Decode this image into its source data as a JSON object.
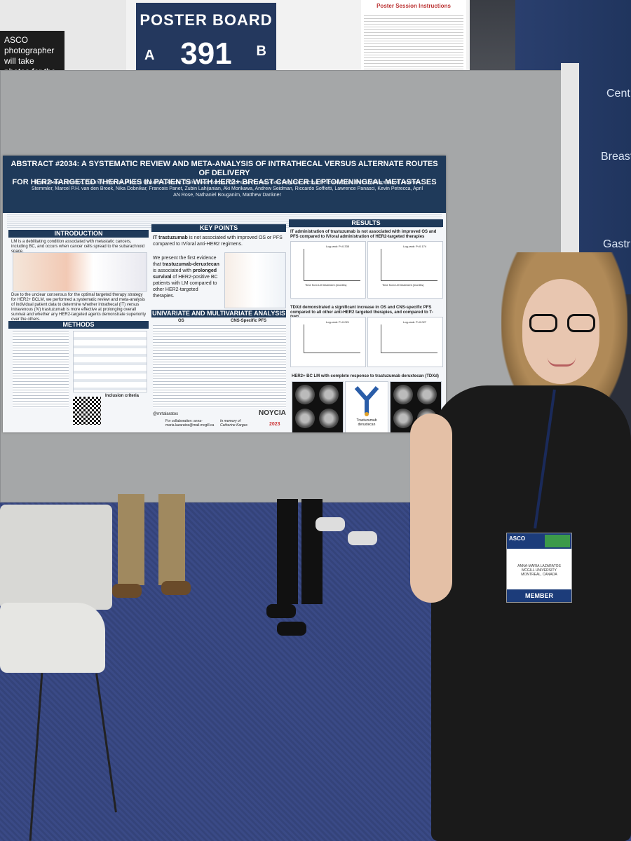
{
  "scene": {
    "photographer_sign": "ASCO photographer will take photos for the Digital Program.",
    "poster_board": {
      "title": "POSTER BOARD",
      "number": "391",
      "left_letter": "A",
      "right_letter": "B"
    },
    "instructions_title": "Poster Session Instructions",
    "booth_words": [
      "Cent",
      "Breast",
      "Gastr"
    ]
  },
  "poster": {
    "title_line1": "ABSTRACT #2034: A SYSTEMATIC REVIEW AND META-ANALYSIS OF INTRATHECAL VERSUS ALTERNATE ROUTES OF DELIVERY",
    "title_line2": "FOR HER2-TARGETED THERAPIES IN PATIENTS WITH HER2+ BREAST CANCER LEPTOMENINGEAL METASTASES",
    "authors": "Anna-Maria Lazaratos, Sarah M. Maritan, Andrea Quaiattini, Amelie Darlix, Ivica Ratosa, Emanuela Ferraro, Gaia Griguolo, Alessia Pellerino, Silvia Hofer, William Jacot, Joachim Stemmler, Marcel P.H. van den Broek, Nika Dobnikar, Francois Panet, Zubin Lahijanian, Aki Morikawa, Andrew Seidman, Riccardo Soffietti, Lawrence Panasci, Kevin Petrecca, April AN Rose, Nathaniel Bouganim, Matthew Dankner",
    "intro": {
      "header": "INTRODUCTION",
      "text1": "LM is a debilitating condition associated with metastatic cancers, including BC, and occurs when cancer cells spread to the subarachnoid space.",
      "text2": "Due to the unclear consensus for the optimal targeted therapy strategy for HER2+ BCLM, we performed a systematic review and meta-analysis of individual patient data to determine whether intrathecal (IT) versus intravenous (IV) trastuzumab is more effective at prolonging overall survival and whether any HER2-targeted agents demonstrate superiority over the others."
    },
    "methods": {
      "header": "METHODS",
      "inclusion": "Inclusion criteria"
    },
    "key_points": {
      "header": "KEY POINTS",
      "point1_a": "IT trastuzumab",
      "point1_b": " is not associated with improved OS or PFS compared to IV/oral anti-HER2 regimens.",
      "point2_a": "We present the first evidence that ",
      "point2_b": "trastuzumab-deruxtecan",
      "point2_c": " is associated with ",
      "point2_d": "prolonged survival",
      "point2_e": " of HER2-positive BC patients with LM compared to other HER2-targeted therapies."
    },
    "analysis": {
      "header": "UNIVARIATE AND MULTIVARIATE ANALYSIS",
      "col1": "OS",
      "col2": "CNS-Specific PFS"
    },
    "results": {
      "header": "RESULTS",
      "finding1": "IT administration of trastuzumab is not associated with improved OS and PFS compared to IV/oral administration of HER2-targeted therapies",
      "finding2": "TDXd demonstrated a significant increase in OS and CNS-specific PFS compared to all other anti-HER2 targeted therapies, and compared to T-DM1",
      "finding3": "HER2+ BC LM with complete response to trastuzumab deruxtecan (TDXd)",
      "drug_label": "Trastuzumab deruxtecan",
      "logrank1": "Log-rank: P=0.335",
      "logrank2": "Log-rank: P=0.174",
      "logrank3": "Log-rank: P=0.021",
      "logrank4": "Log-rank: P=0.027",
      "xaxis": "Time from LM treatment (months)"
    },
    "footer": {
      "handle": "@mrtalaratos",
      "contact": "For collaboration: anna-maria.lazaratos@mail.mcgill.ca",
      "memory": "In memory of Catherine Kargas",
      "sponsor": "NOYCIA",
      "year": "2023"
    }
  },
  "badge": {
    "org": "ASCO",
    "name": "ANNA-MARIA LAZARATOS",
    "affiliation": "MCGILL UNIVERSITY",
    "city": "MONTREAL, CANADA",
    "type": "MEMBER"
  }
}
